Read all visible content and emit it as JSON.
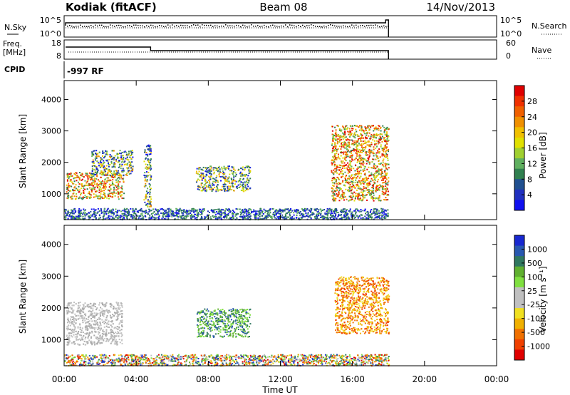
{
  "header": {
    "station": "Kodiak (fitACF)",
    "beam": "Beam 08",
    "date": "14/Nov/2013"
  },
  "panels": {
    "nsky": {
      "label": "N.Sky",
      "left_ticks": [
        "10^5",
        "10^0"
      ],
      "right_ticks": [
        "10^5",
        "10^0"
      ],
      "right_label": "N.Search"
    },
    "freq": {
      "label_top": "Freq.",
      "label_bottom": "[MHz]",
      "left_ticks": [
        "18",
        "8"
      ],
      "right_ticks": [
        "60",
        "0"
      ],
      "right_label": "Nave"
    },
    "cpid": {
      "label": "CPID",
      "value": "-997 RF"
    }
  },
  "power_colorbar": {
    "label": "Power [dB]",
    "ticks": [
      "28",
      "24",
      "20",
      "16",
      "12",
      "8",
      "4"
    ],
    "colors": [
      "#e00000",
      "#f03000",
      "#f06000",
      "#f09000",
      "#f0c000",
      "#e0e000",
      "#a0d030",
      "#60b060",
      "#308050",
      "#205090",
      "#2030c0",
      "#1010f0"
    ]
  },
  "velocity_colorbar": {
    "label": "Velocity [m s⁻¹]",
    "ticks": [
      "1000",
      "500",
      "100",
      "25",
      "-25",
      "-100",
      "-500",
      "-1000"
    ],
    "colors": [
      "#1828d0",
      "#2858b0",
      "#307860",
      "#60b030",
      "#80e040",
      "#c0c0c0",
      "#c0c0c0",
      "#f0e020",
      "#f0b000",
      "#f07000",
      "#f04000",
      "#e00000"
    ]
  },
  "chart_data": {
    "type": "heatmap",
    "xlabel": "Time UT",
    "x_ticks": [
      "00:00",
      "04:00",
      "08:00",
      "12:00",
      "16:00",
      "20:00",
      "00:00"
    ],
    "xlim_hours": [
      0,
      24
    ],
    "ylabel": "Slant Range [km]",
    "y_ticks": [
      4000,
      3000,
      2000,
      1000
    ],
    "ylim": [
      180,
      4600
    ],
    "data_end_hour": 18,
    "power_regions": [
      {
        "t0": 0.1,
        "t1": 3.3,
        "r0": 850,
        "r1": 1700,
        "level": "high"
      },
      {
        "t0": 1.5,
        "t1": 3.8,
        "r0": 1600,
        "r1": 2400,
        "level": "medium"
      },
      {
        "t0": 4.4,
        "t1": 4.8,
        "r0": 600,
        "r1": 2600,
        "level": "medium"
      },
      {
        "t0": 7.3,
        "t1": 10.3,
        "r0": 1100,
        "r1": 1900,
        "level": "medium"
      },
      {
        "t0": 14.8,
        "t1": 18.0,
        "r0": 800,
        "r1": 3200,
        "level": "high"
      },
      {
        "t0": 0.0,
        "t1": 18.0,
        "r0": 200,
        "r1": 550,
        "level": "low"
      }
    ],
    "velocity_regions": [
      {
        "t0": 0.1,
        "t1": 3.2,
        "r0": 850,
        "r1": 2200,
        "v": "near zero"
      },
      {
        "t0": 7.3,
        "t1": 10.3,
        "r0": 1100,
        "r1": 2000,
        "v": "100 to 500"
      },
      {
        "t0": 15.0,
        "t1": 18.0,
        "r0": 1200,
        "r1": 3000,
        "v": "-100 to -500"
      },
      {
        "t0": 0.0,
        "t1": 18.0,
        "r0": 200,
        "r1": 550,
        "v": "mixed"
      }
    ]
  }
}
